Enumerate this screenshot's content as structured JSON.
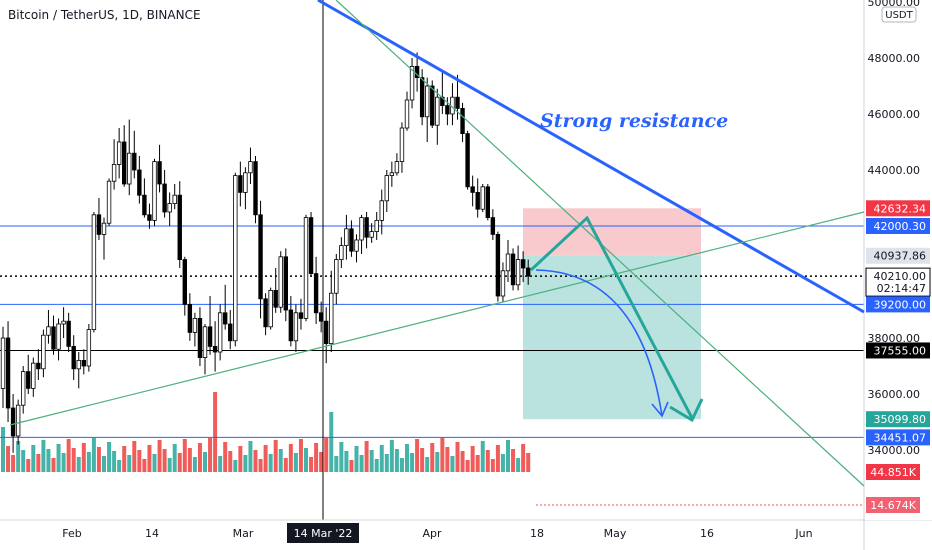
{
  "header": {
    "title": "Bitcoin / TetherUS, 1D, BINANCE"
  },
  "chart_data": {
    "type": "candlestick",
    "symbol": "Bitcoin / TetherUS",
    "interval": "1D",
    "exchange": "BINANCE",
    "currency": "USDT",
    "x_ticks": [
      "Feb",
      "14",
      "Mar",
      "14 Mar '22",
      "Apr",
      "18",
      "May",
      "16",
      "Jun"
    ],
    "y_ticks": [
      "50000.00",
      "48000.00",
      "46000.00",
      "44000.00",
      "38000.00",
      "36000.00",
      "34000.00"
    ],
    "ylim": [
      32000,
      50200
    ],
    "annotation": "Strong resistance",
    "levels": [
      {
        "label": "42000.30",
        "value": 42000.3,
        "kind": "blue"
      },
      {
        "label": "39200.00",
        "value": 39200,
        "kind": "blue"
      },
      {
        "label": "37555.00",
        "value": 37555,
        "kind": "black"
      },
      {
        "label": "34451.07",
        "value": 34451.07,
        "kind": "blue"
      }
    ],
    "position": {
      "stop": "42632.34",
      "entry": "40937.86",
      "target": "35099.80",
      "stop_value": 42632.34,
      "entry_value": 40937.86,
      "target_value": 35099.8
    },
    "last_price": {
      "value": "40210.00",
      "countdown": "02:14:47",
      "num": 40210
    },
    "volume_labels": [
      "44.851K",
      "14.674K"
    ],
    "crosshair_label": "14 Mar '22",
    "candles": [
      [
        36200,
        38400,
        35500,
        38000
      ],
      [
        38000,
        38600,
        35000,
        35500
      ],
      [
        35500,
        36000,
        33900,
        34500
      ],
      [
        34500,
        35800,
        34200,
        35600
      ],
      [
        35600,
        37000,
        35300,
        36800
      ],
      [
        36800,
        37400,
        36000,
        36200
      ],
      [
        36200,
        37300,
        35900,
        37100
      ],
      [
        37100,
        37600,
        36500,
        36900
      ],
      [
        36900,
        38300,
        36600,
        38100
      ],
      [
        38100,
        39000,
        37800,
        38400
      ],
      [
        38400,
        38800,
        37400,
        37600
      ],
      [
        37600,
        38700,
        37200,
        38500
      ],
      [
        38500,
        39100,
        38000,
        38600
      ],
      [
        38600,
        38900,
        37500,
        37700
      ],
      [
        37700,
        38100,
        36500,
        36900
      ],
      [
        36900,
        37500,
        36200,
        37200
      ],
      [
        37200,
        37600,
        36700,
        37000
      ],
      [
        37000,
        38500,
        36800,
        38300
      ],
      [
        38300,
        42500,
        38200,
        42400
      ],
      [
        42400,
        43000,
        41500,
        41700
      ],
      [
        41700,
        42300,
        40800,
        42100
      ],
      [
        42100,
        43700,
        42000,
        43600
      ],
      [
        43600,
        45100,
        43300,
        44200
      ],
      [
        44200,
        45500,
        43700,
        45000
      ],
      [
        45000,
        45600,
        43400,
        43500
      ],
      [
        43500,
        45800,
        43100,
        44600
      ],
      [
        44600,
        45400,
        43700,
        44000
      ],
      [
        44000,
        44500,
        42800,
        43100
      ],
      [
        43100,
        43700,
        42300,
        42400
      ],
      [
        42400,
        42800,
        41900,
        42200
      ],
      [
        42200,
        44400,
        42000,
        44300
      ],
      [
        44300,
        44900,
        43200,
        43500
      ],
      [
        43500,
        44000,
        42300,
        42500
      ],
      [
        42500,
        43200,
        42000,
        42800
      ],
      [
        42800,
        43500,
        42600,
        43100
      ],
      [
        43100,
        43600,
        40500,
        40800
      ],
      [
        40800,
        40900,
        38800,
        39200
      ],
      [
        39200,
        39600,
        37900,
        38200
      ],
      [
        38200,
        38900,
        37700,
        38700
      ],
      [
        38700,
        39100,
        37000,
        37300
      ],
      [
        37300,
        38500,
        36700,
        38400
      ],
      [
        38400,
        39500,
        37400,
        37700
      ],
      [
        37700,
        38600,
        36800,
        37500
      ],
      [
        37500,
        39200,
        37200,
        38900
      ],
      [
        38900,
        39900,
        38300,
        38500
      ],
      [
        38500,
        39000,
        37600,
        37900
      ],
      [
        37900,
        43900,
        37700,
        43800
      ],
      [
        43800,
        44300,
        42700,
        43200
      ],
      [
        43200,
        44100,
        42600,
        43900
      ],
      [
        43900,
        44800,
        43500,
        44300
      ],
      [
        44300,
        44500,
        42100,
        42400
      ],
      [
        42400,
        42900,
        38700,
        39400
      ],
      [
        39400,
        39600,
        38100,
        38400
      ],
      [
        38400,
        39800,
        38300,
        39700
      ],
      [
        39700,
        40500,
        38900,
        39100
      ],
      [
        39100,
        41100,
        38900,
        40900
      ],
      [
        40900,
        41200,
        38600,
        39000
      ],
      [
        39000,
        39500,
        37700,
        37900
      ],
      [
        37900,
        39200,
        37500,
        38900
      ],
      [
        38900,
        39400,
        38300,
        38700
      ],
      [
        38700,
        42400,
        38600,
        42300
      ],
      [
        42300,
        42500,
        40200,
        40300
      ],
      [
        40300,
        40900,
        38500,
        38900
      ],
      [
        38900,
        39300,
        38200,
        38600
      ],
      [
        38600,
        39100,
        37100,
        37800
      ],
      [
        37800,
        40400,
        37500,
        39600
      ],
      [
        39600,
        41000,
        39200,
        40800
      ],
      [
        40800,
        41600,
        40500,
        41300
      ],
      [
        41300,
        42400,
        40800,
        41900
      ],
      [
        41900,
        42200,
        40900,
        41100
      ],
      [
        41100,
        41700,
        40700,
        41500
      ],
      [
        41500,
        42400,
        41000,
        42300
      ],
      [
        42300,
        42500,
        41200,
        41600
      ],
      [
        41600,
        42100,
        41400,
        41800
      ],
      [
        41800,
        42500,
        41500,
        42200
      ],
      [
        42200,
        43300,
        41700,
        42900
      ],
      [
        42900,
        44000,
        42500,
        43800
      ],
      [
        43800,
        44300,
        43400,
        43900
      ],
      [
        43900,
        44600,
        43800,
        44300
      ],
      [
        44300,
        45700,
        43900,
        45500
      ],
      [
        45500,
        46800,
        45400,
        46500
      ],
      [
        46500,
        48000,
        46200,
        47700
      ],
      [
        47700,
        48200,
        46800,
        47300
      ],
      [
        47300,
        47600,
        45600,
        45900
      ],
      [
        45900,
        47300,
        45000,
        47000
      ],
      [
        47000,
        47200,
        45500,
        45600
      ],
      [
        45600,
        46900,
        44900,
        46600
      ],
      [
        46600,
        47500,
        46000,
        46300
      ],
      [
        46300,
        46600,
        45600,
        46000
      ],
      [
        46000,
        47100,
        45600,
        46600
      ],
      [
        46600,
        47400,
        45800,
        46200
      ],
      [
        46200,
        46400,
        45000,
        45300
      ],
      [
        45300,
        45400,
        43300,
        43400
      ],
      [
        43400,
        43800,
        42700,
        43200
      ],
      [
        43200,
        43700,
        42300,
        42600
      ],
      [
        42600,
        43500,
        42500,
        43400
      ],
      [
        43400,
        43500,
        42200,
        42300
      ],
      [
        42300,
        42600,
        41500,
        41700
      ],
      [
        41700,
        41800,
        39300,
        39500
      ],
      [
        39500,
        40700,
        39300,
        40400
      ],
      [
        40400,
        41500,
        40000,
        41000
      ],
      [
        41000,
        41200,
        39700,
        39900
      ],
      [
        39900,
        41300,
        39700,
        40800
      ],
      [
        40800,
        41100,
        40000,
        40500
      ],
      [
        40500,
        40800,
        39900,
        40210
      ]
    ]
  }
}
